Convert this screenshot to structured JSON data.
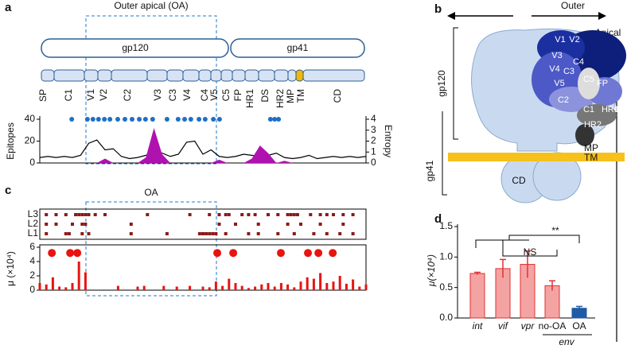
{
  "panel_a": {
    "letter": "a",
    "region_label": "Outer apical (OA)",
    "proteins": [
      "gp120",
      "gp41"
    ],
    "domains": [
      "SP",
      "C1",
      "V1",
      "V2",
      "C2",
      "V3",
      "C3",
      "V4",
      "C4",
      "V5",
      "C5",
      "FP",
      "HR1",
      "DS",
      "HR2",
      "MP",
      "TM",
      "CD"
    ]
  },
  "panel_b": {
    "letter": "b",
    "direction_x": "Outer",
    "direction_y": "Apical",
    "proteins": [
      "gp120",
      "gp41"
    ],
    "labels": [
      "V1",
      "V2",
      "V3",
      "C4",
      "V4",
      "C3",
      "V5",
      "C5",
      "FP",
      "C2",
      "C1",
      "HR1",
      "HR2",
      "MP",
      "TM",
      "CD"
    ]
  },
  "panel_c": {
    "letter": "c",
    "region_label": "OA"
  },
  "panel_d": {
    "letter": "d"
  },
  "chart_data": [
    {
      "type": "line",
      "xlim": [
        0,
        100
      ],
      "x": [
        0,
        2.5,
        5,
        7.5,
        10,
        12.5,
        15,
        17.5,
        20,
        22.5,
        25,
        27.5,
        30,
        32.5,
        35,
        37.5,
        40,
        42.5,
        45,
        47.5,
        50,
        52.5,
        55,
        57.5,
        60,
        62.5,
        65,
        67.5,
        70,
        72.5,
        75,
        77.5,
        80,
        82.5,
        85,
        87.5,
        90,
        92.5,
        95,
        97.5,
        100
      ],
      "y_label": "Epitopes",
      "ylim": [
        0,
        40
      ],
      "yticks": [
        0,
        20,
        40
      ],
      "y2_label": "Entropy",
      "y2lim": [
        0,
        4
      ],
      "y2ticks": [
        0,
        1,
        2,
        3,
        4
      ],
      "series": [
        {
          "type": "line",
          "axis": "y2",
          "color": "#000000",
          "values": [
            0.5,
            0.6,
            0.5,
            0.6,
            0.5,
            0.7,
            1.8,
            2.1,
            1.2,
            1.3,
            0.6,
            0.4,
            0.5,
            0.7,
            1.0,
            0.9,
            0.6,
            0.8,
            1.9,
            2.0,
            0.8,
            1.2,
            0.6,
            0.5,
            0.6,
            0.8,
            0.7,
            0.6,
            0.7,
            0.9,
            0.5,
            0.4,
            0.5,
            0.7,
            0.4,
            0.5,
            0.6,
            0.5,
            0.6,
            0.5,
            0.6
          ]
        },
        {
          "type": "area",
          "axis": "y2",
          "color": "#b012b0",
          "values": [
            0,
            0,
            0,
            0,
            0,
            0,
            0,
            0,
            0.4,
            0,
            0,
            0,
            0,
            0.5,
            3.2,
            0.8,
            0,
            0,
            0,
            0,
            0,
            0,
            0.3,
            0,
            0,
            0,
            0.4,
            1.6,
            0.9,
            0,
            0.2,
            0,
            0,
            0,
            0,
            0,
            0,
            0,
            0,
            0,
            0
          ]
        },
        {
          "type": "scatter",
          "axis": "y",
          "color": "#1f6fc5",
          "x": [
            9.8,
            14.6,
            16.3,
            18.0,
            19.8,
            21.5,
            23.9,
            26.1,
            28.3,
            30.5,
            32.4,
            34.6,
            39.0,
            42.4,
            44.4,
            46.3,
            48.8,
            50.7,
            53.2,
            55.1,
            70.7,
            72.0,
            73.2
          ],
          "values": [
            40,
            40,
            40,
            40,
            40,
            40,
            40,
            40,
            40,
            40,
            40,
            40,
            40,
            40,
            40,
            40,
            40,
            40,
            40,
            40,
            40,
            40,
            40
          ]
        }
      ]
    },
    {
      "type": "bar",
      "xlim": [
        0,
        100
      ],
      "color": "#e8140f",
      "y_label": "μ (×10⁴)",
      "ylim": [
        0,
        6
      ],
      "yticks": [
        0,
        2,
        4,
        6
      ],
      "x": [
        0,
        2,
        4,
        6,
        8,
        10,
        12,
        14,
        16,
        18,
        20,
        22,
        24,
        26,
        28,
        30,
        32,
        34,
        36,
        38,
        40,
        42,
        44,
        46,
        48,
        50,
        52,
        54,
        56,
        58,
        60,
        62,
        64,
        66,
        68,
        70,
        72,
        74,
        76,
        78,
        80,
        82,
        84,
        86,
        88,
        90,
        92,
        94,
        96,
        98,
        100
      ],
      "values": [
        1.0,
        0.8,
        1.8,
        0.5,
        0.4,
        1.0,
        4.0,
        2.5,
        0,
        0,
        0,
        0,
        0.6,
        0,
        0,
        0.5,
        0.6,
        0,
        0,
        0.6,
        0,
        0.5,
        0,
        0.6,
        0,
        0.5,
        0.4,
        1.2,
        0.6,
        1.6,
        1.0,
        0.6,
        0.3,
        0.5,
        0.8,
        1.0,
        0.5,
        1.0,
        0.8,
        0.4,
        1.2,
        1.8,
        1.6,
        2.4,
        1.0,
        1.2,
        2.0,
        0.9,
        1.5,
        0.5,
        0.8
      ],
      "markers": {
        "x": [
          3.7,
          9.3,
          11.5,
          54.4,
          59.3,
          73.9,
          82.2,
          85.4,
          89.8
        ],
        "values": [
          5.2,
          5.2,
          5.2,
          5.2,
          5.2,
          5.2,
          5.2,
          5.2,
          5.2
        ]
      },
      "lanes": [
        {
          "name": "L3",
          "color": "#8b1a1a",
          "x": [
            2,
            5,
            8,
            11,
            12,
            13,
            14,
            15,
            17,
            20,
            33,
            46,
            52,
            55,
            57,
            58,
            62,
            64,
            66,
            70,
            73,
            76,
            77,
            78,
            79,
            83,
            86,
            88,
            90,
            93,
            96
          ]
        },
        {
          "name": "L2",
          "color": "#8b1a1a",
          "x": [
            2,
            5,
            10,
            13,
            14,
            28,
            55,
            60,
            67,
            76,
            80,
            86,
            93
          ]
        },
        {
          "name": "L1",
          "color": "#8b1a1a",
          "x": [
            2,
            8,
            9,
            13,
            15,
            28,
            39,
            49,
            50,
            51,
            52,
            53,
            54,
            57,
            64,
            67,
            73,
            78,
            84,
            88,
            92,
            96
          ]
        }
      ]
    },
    {
      "type": "bar",
      "categories": [
        "int",
        "vif",
        "vpr",
        "no-OA",
        "OA"
      ],
      "values": [
        0.73,
        0.81,
        0.88,
        0.53,
        0.16
      ],
      "errors": [
        0.02,
        0.15,
        0.22,
        0.08,
        0.03
      ],
      "colors": [
        "#f4a3a3",
        "#f4a3a3",
        "#f4a3a3",
        "#f4a3a3",
        "#1f5aa6"
      ],
      "y_label": "μ(×10⁴)",
      "ylim": [
        0,
        1.5
      ],
      "yticks": [
        {
          "value": 0,
          "label": "0.0"
        },
        0.5,
        {
          "value": 1,
          "label": "1.0"
        },
        1.5
      ],
      "group_label": "env",
      "annotations": [
        "NS",
        "**"
      ]
    }
  ]
}
